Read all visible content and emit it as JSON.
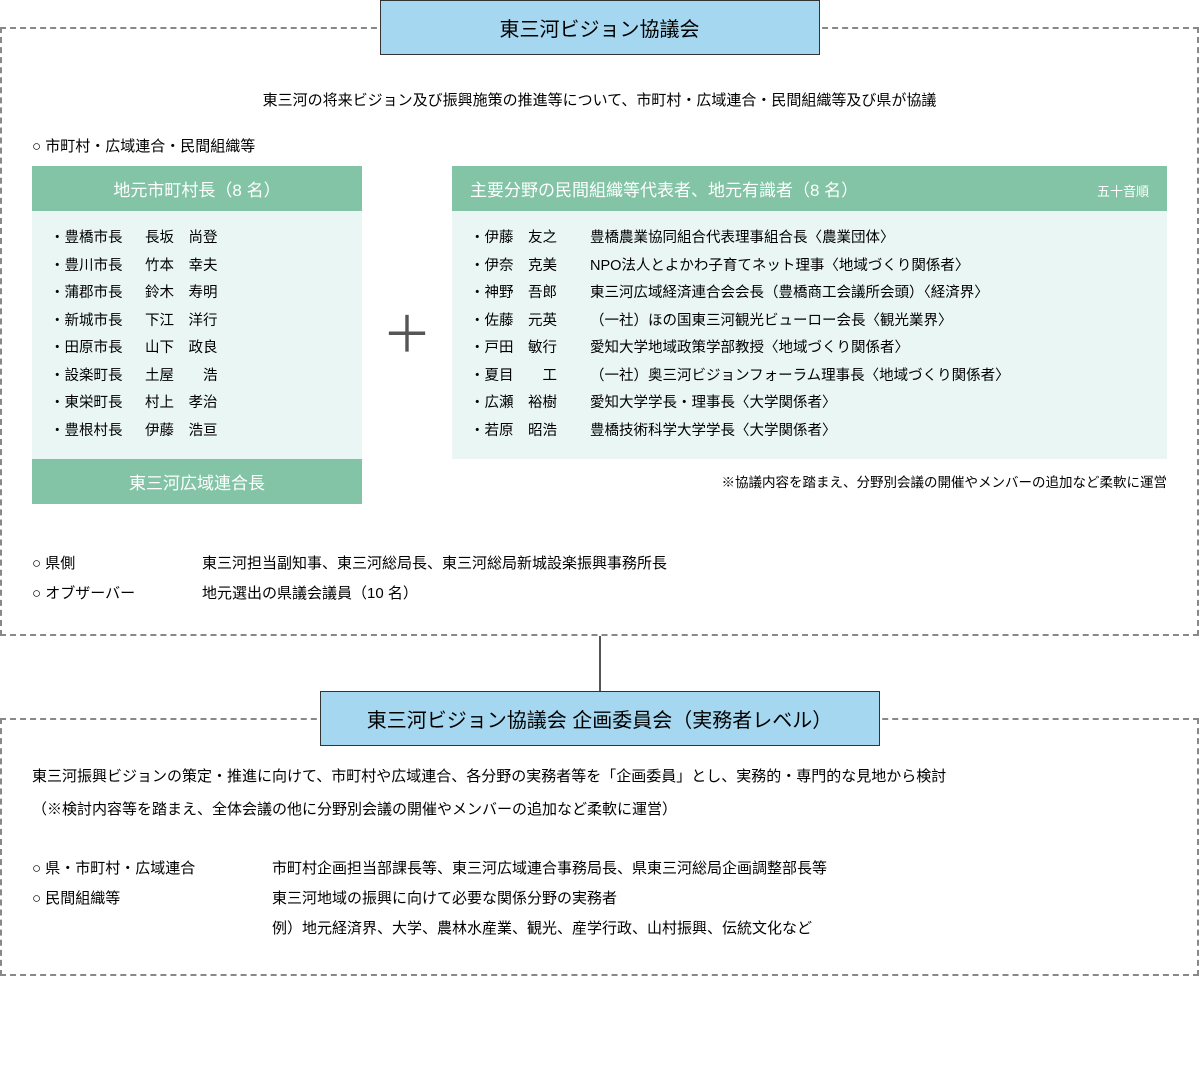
{
  "colors": {
    "title_bg": "#a5d8f0",
    "panel_header_bg": "#82c4a5",
    "panel_body_bg": "#eaf6f4",
    "border": "#888888",
    "text": "#222222"
  },
  "title1": "東三河ビジョン協議会",
  "desc1": "東三河の将来ビジョン及び振興施策の推進等について、市町村・広域連合・民間組織等及び県が協議",
  "section_label": "○ 市町村・広域連合・民間組織等",
  "left": {
    "header": "地元市町村長（8 名）",
    "members": [
      {
        "role": "・豊橋市長",
        "name": "長坂　尚登"
      },
      {
        "role": "・豊川市長",
        "name": "竹本　幸夫"
      },
      {
        "role": "・蒲郡市長",
        "name": "鈴木　寿明"
      },
      {
        "role": "・新城市長",
        "name": "下江　洋行"
      },
      {
        "role": "・田原市長",
        "name": "山下　政良"
      },
      {
        "role": "・設楽町長",
        "name": "土屋　　浩"
      },
      {
        "role": "・東栄町長",
        "name": "村上　孝治"
      },
      {
        "role": "・豊根村長",
        "name": "伊藤　浩亘"
      }
    ],
    "footer": "東三河広域連合長"
  },
  "plus": "＋",
  "right": {
    "header": "主要分野の民間組織等代表者、地元有識者（8 名）",
    "sortnote": "五十音順",
    "members": [
      {
        "name": "・伊藤　友之",
        "desc": "豊橋農業協同組合代表理事組合長〈農業団体〉"
      },
      {
        "name": "・伊奈　克美",
        "desc": "NPO法人とよかわ子育てネット理事〈地域づくり関係者〉"
      },
      {
        "name": "・神野　吾郎",
        "desc": "東三河広域経済連合会会長（豊橋商工会議所会頭）〈経済界〉"
      },
      {
        "name": "・佐藤　元英",
        "desc": "（一社）ほの国東三河観光ビューロー会長〈観光業界〉"
      },
      {
        "name": "・戸田　敏行",
        "desc": "愛知大学地域政策学部教授〈地域づくり関係者〉"
      },
      {
        "name": "・夏目　　工",
        "desc": "（一社）奥三河ビジョンフォーラム理事長〈地域づくり関係者〉"
      },
      {
        "name": "・広瀬　裕樹",
        "desc": "愛知大学学長・理事長〈大学関係者〉"
      },
      {
        "name": "・若原　昭浩",
        "desc": "豊橋技術科学大学学長〈大学関係者〉"
      }
    ],
    "footnote": "※協議内容を踏まえ、分野別会議の開催やメンバーの追加など柔軟に運営"
  },
  "info": [
    {
      "label": "○ 県側",
      "value": "東三河担当副知事、東三河総局長、東三河総局新城設楽振興事務所長"
    },
    {
      "label": "○ オブザーバー",
      "value": "地元選出の県議会議員（10 名）"
    }
  ],
  "title2": "東三河ビジョン協議会 企画委員会（実務者レベル）",
  "desc2a": "東三河振興ビジョンの策定・推進に向けて、市町村や広域連合、各分野の実務者等を「企画委員」とし、実務的・専門的な見地から検討",
  "desc2b": "（※検討内容等を踏まえ、全体会議の他に分野別会議の開催やメンバーの追加など柔軟に運営）",
  "sub": [
    {
      "label": "○ 県・市町村・広域連合",
      "value": "市町村企画担当部課長等、東三河広域連合事務局長、県東三河総局企画調整部長等"
    },
    {
      "label": "○ 民間組織等",
      "value": "東三河地域の振興に向けて必要な関係分野の実務者"
    },
    {
      "label": "",
      "value": "例）地元経済界、大学、農林水産業、観光、産学行政、山村振興、伝統文化など"
    }
  ]
}
